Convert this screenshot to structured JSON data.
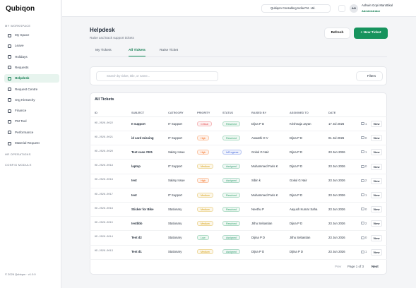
{
  "sidebar": {
    "logo": "Qubiqon",
    "sections": [
      {
        "title": "MY WORKSPACE",
        "items": [
          "My Space",
          "Leave",
          "Holidays",
          "Requests",
          "Helpdesk",
          "Request Centre",
          "Org Hierarchy",
          "Finance",
          "PM Tool",
          "Performance",
          "Material Request"
        ]
      },
      {
        "title": "HR OPERATIONS",
        "items": []
      },
      {
        "title": "CONFIG MODULE",
        "items": []
      }
    ],
    "active_item": "Helpdesk",
    "footer": "© 2026 Qubiqon · v1.0.0"
  },
  "header": {
    "company": "Qubiqon Consulting India Pvt. Ltd.",
    "avatar": "AG",
    "user_name": "Ashwin Gopi Marottikal",
    "user_role": "Administrator"
  },
  "page": {
    "title": "Helpdesk",
    "subtitle": "Raise and track support tickets",
    "refresh": "Refresh",
    "new_ticket": "+ New Ticket",
    "tabs": [
      "My Tickets",
      "All Tickets",
      "Raise Ticket"
    ],
    "active_tab": "All Tickets",
    "search_placeholder": "Search by ticket, title, or name...",
    "filters": "Filters"
  },
  "table": {
    "title": "All Tickets",
    "columns": [
      "ID",
      "SUBJECT",
      "CATEGORY",
      "PRIORITY",
      "STATUS",
      "RAISED BY",
      "ASSIGNED TO",
      "DATE"
    ],
    "rows": [
      [
        "HD-2026-0022",
        "It support",
        "IT Support",
        "Critical",
        "Resolved",
        "Dijna P D",
        "Krishnaja Jayan",
        "17 Jul 2026",
        "1",
        "View"
      ],
      [
        "HD-2026-0021",
        "id card missing",
        "IT Support",
        "High",
        "Resolved",
        "Aswathi O V",
        "Dijna P D",
        "01 Jul 2026",
        "0",
        "View"
      ],
      [
        "HD-2026-0020",
        "Test case #001",
        "Salary Issue",
        "High",
        "InProgress",
        "Gokul G Nair",
        "Dijna P D",
        "23 Jun 2026",
        "1",
        "View"
      ],
      [
        "HD-2026-0019",
        "laptop",
        "IT Support",
        "Medium",
        "Assigned",
        "Muhammed Faris K",
        "Dijna P D",
        "23 Jun 2026",
        "0",
        "View"
      ],
      [
        "HD-2026-0018",
        "test",
        "Salary Issue",
        "High",
        "Assigned",
        "Sibin k",
        "Gokul G Nair",
        "23 Jun 2026",
        "2",
        "View"
      ],
      [
        "HD-2026-0017",
        "test",
        "IT Support",
        "Medium",
        "Resolved",
        "Muhammed Faris K",
        "Dijna P D",
        "23 Jun 2026",
        "1",
        "View"
      ],
      [
        "HD-2026-0016",
        "Sticker for Bike",
        "Stationary",
        "Medium",
        "Resolved",
        "Neethu P",
        "Aayush Kumar Saha",
        "23 Jun 2026",
        "0",
        "View"
      ],
      [
        "HD-2026-0015",
        "testbbb",
        "Stationary",
        "Medium",
        "Resolved",
        "Jithu Sebastian",
        "Dijna P D",
        "23 Jun 2026",
        "2",
        "View"
      ],
      [
        "HD-2026-0014",
        "Test d2",
        "Stationary",
        "Low",
        "Assigned",
        "Dijina P D",
        "Jithu Sebastian",
        "23 Jun 2026",
        "0",
        "View"
      ],
      [
        "HD-2026-0013",
        "Test d1",
        "Stationary",
        "Medium",
        "Assigned",
        "Dijna P D",
        "Dijina P D",
        "23 Jun 2026",
        "1",
        "View"
      ]
    ],
    "badge_colors": {
      "Critical": "#e5484d",
      "High": "#f76b15",
      "Medium": "#d39b00",
      "Low": "#30a46c",
      "Resolved": "#30a46c",
      "InProgress": "#3e63dd",
      "Assigned": "#2f9e6e"
    },
    "pagination": {
      "prev": "Prev",
      "page": "Page 1 of 3",
      "next": "Next"
    }
  }
}
